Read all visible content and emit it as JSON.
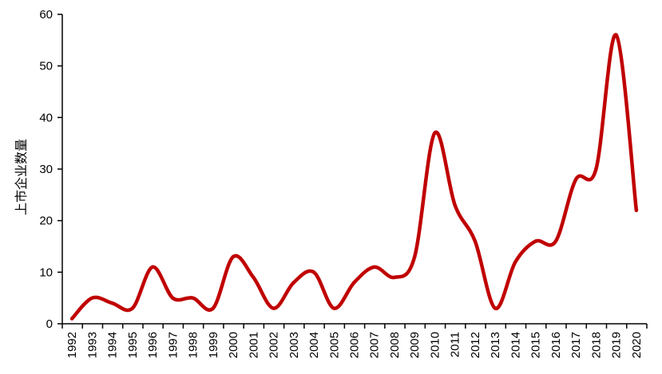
{
  "chart_data": {
    "type": "line",
    "title": "",
    "xlabel": "",
    "ylabel": "上市企业数量",
    "ylim": [
      0,
      60
    ],
    "yticks": [
      0,
      10,
      20,
      30,
      40,
      50,
      60
    ],
    "grid": false,
    "smooth": true,
    "color": "#c00000",
    "categories": [
      "1992",
      "1993",
      "1994",
      "1995",
      "1996",
      "1997",
      "1998",
      "1999",
      "2000",
      "2001",
      "2002",
      "2003",
      "2004",
      "2005",
      "2006",
      "2007",
      "2008",
      "2009",
      "2010",
      "2011",
      "2012",
      "2013",
      "2014",
      "2015",
      "2016",
      "2017",
      "2018",
      "2019",
      "2020"
    ],
    "values": [
      1,
      5,
      4,
      3,
      11,
      5,
      5,
      3,
      13,
      9,
      3,
      8,
      10,
      3,
      8,
      11,
      9,
      13,
      37,
      23,
      16,
      3,
      12,
      16,
      16,
      28,
      30,
      56,
      22
    ]
  }
}
